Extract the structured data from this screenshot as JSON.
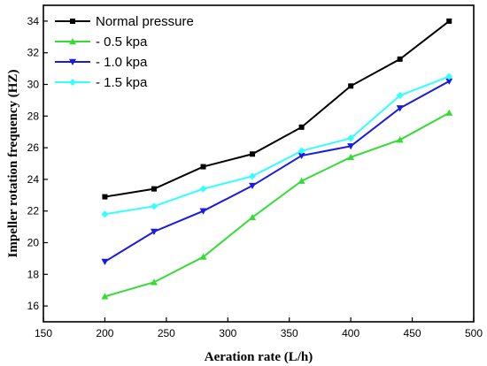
{
  "chart_data": {
    "type": "line",
    "xlabel": "Aeration rate (L/h)",
    "ylabel": "Impeller rotation frequency (HZ)",
    "xlim": [
      150,
      500
    ],
    "ylim": [
      15,
      35
    ],
    "xticks": [
      150,
      200,
      250,
      300,
      350,
      400,
      450,
      500
    ],
    "yticks": [
      16,
      18,
      20,
      22,
      24,
      26,
      28,
      30,
      32,
      34
    ],
    "grid": false,
    "legend_position": "top-left",
    "x": [
      200,
      240,
      280,
      320,
      360,
      400,
      440,
      480
    ],
    "series": [
      {
        "name": "Normal pressure",
        "color": "#000000",
        "marker": "square",
        "values": [
          22.9,
          23.4,
          24.8,
          25.6,
          27.3,
          29.9,
          31.6,
          34.0
        ]
      },
      {
        "name": "- 0.5 kpa",
        "color": "#33dd33",
        "marker": "triangle-up",
        "values": [
          16.6,
          17.5,
          19.1,
          21.6,
          23.9,
          25.4,
          26.5,
          28.2
        ]
      },
      {
        "name": "- 1.0 kpa",
        "color": "#1a1ae6",
        "marker": "triangle-down",
        "values": [
          18.8,
          20.7,
          22.0,
          23.6,
          25.5,
          26.1,
          28.5,
          30.2
        ]
      },
      {
        "name": "- 1.5 kpa",
        "color": "#33ffff",
        "marker": "diamond",
        "values": [
          21.8,
          22.3,
          23.4,
          24.2,
          25.8,
          26.6,
          29.3,
          30.5
        ]
      }
    ]
  }
}
